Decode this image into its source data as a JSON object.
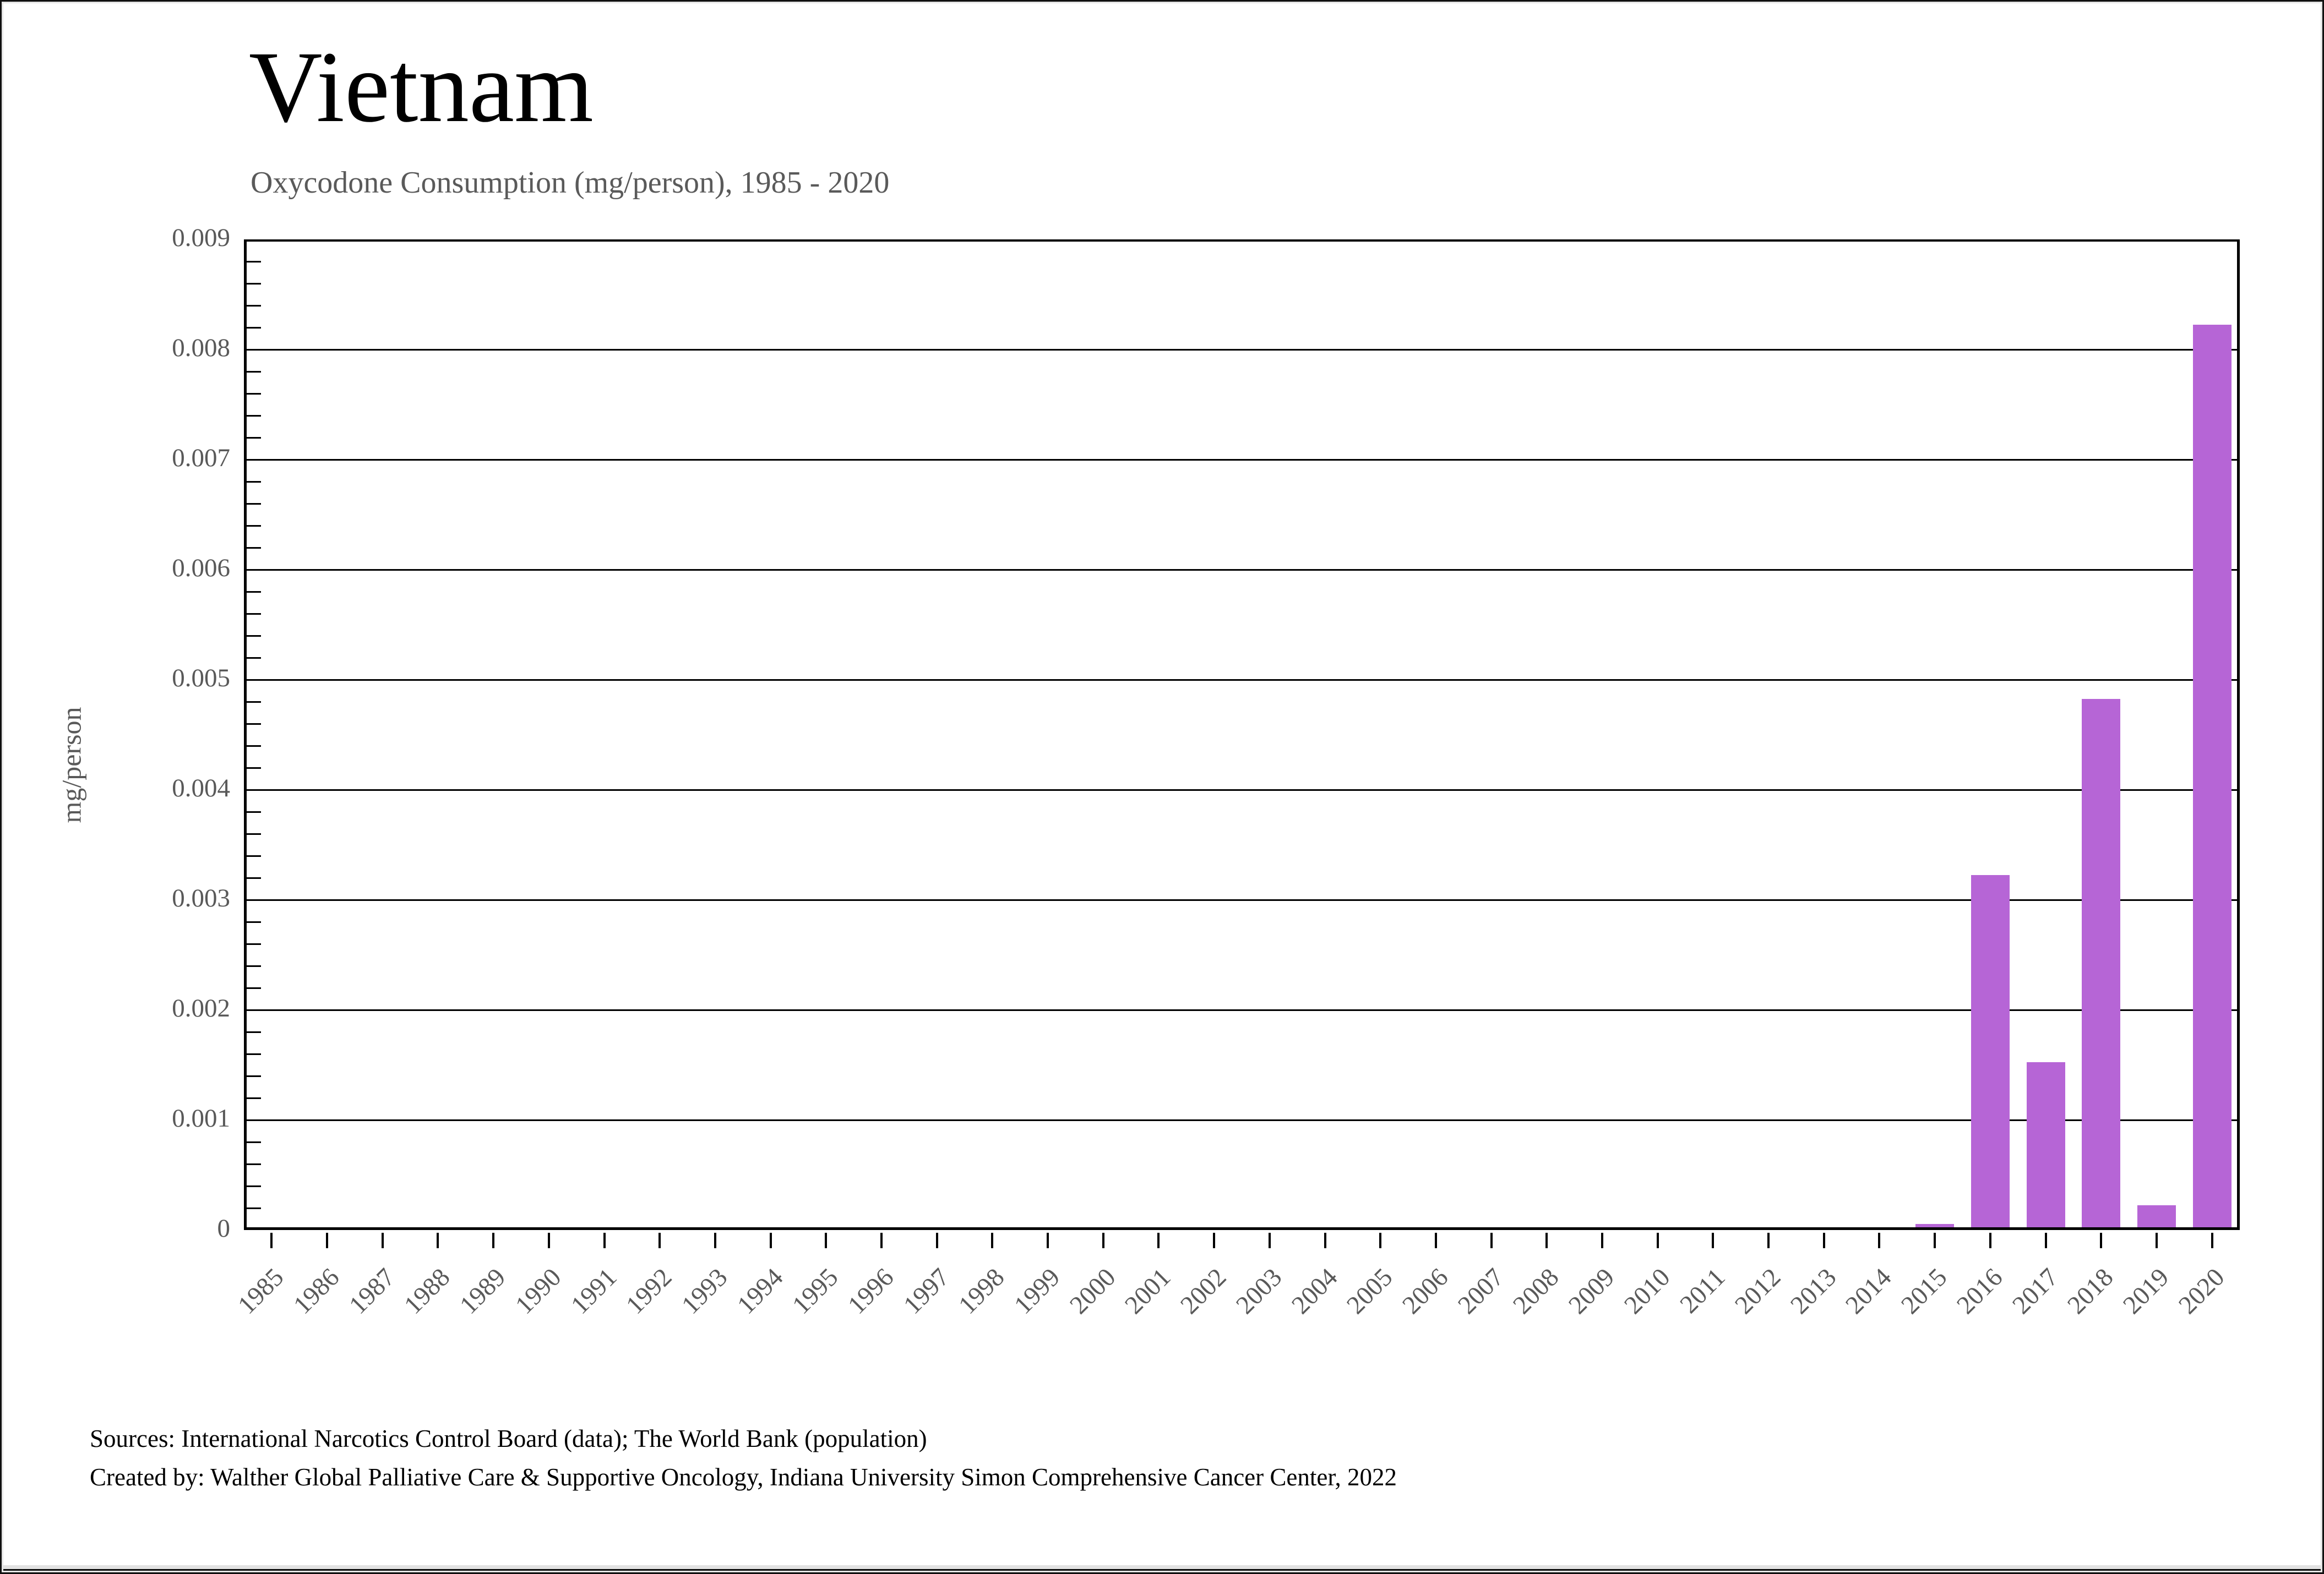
{
  "chart_data": {
    "type": "bar",
    "title": "Vietnam",
    "subtitle": "Oxycodone Consumption (mg/person), 1985 - 2020",
    "ylabel": "mg/person",
    "xlabel": "",
    "ylim": [
      0,
      0.009
    ],
    "ytick_interval": 0.001,
    "ytick_labels": [
      "0",
      "0.001",
      "0.002",
      "0.003",
      "0.004",
      "0.005",
      "0.006",
      "0.007",
      "0.008",
      "0.009"
    ],
    "minor_ticks_per_major": 5,
    "grid": "horizontal-major-on",
    "legend_position": "none",
    "bar_color": "#b665d6",
    "axis_color": "#000000",
    "tick_label_color": "#595959",
    "categories": [
      "1985",
      "1986",
      "1987",
      "1988",
      "1989",
      "1990",
      "1991",
      "1992",
      "1993",
      "1994",
      "1995",
      "1996",
      "1997",
      "1998",
      "1999",
      "2000",
      "2001",
      "2002",
      "2003",
      "2004",
      "2005",
      "2006",
      "2007",
      "2008",
      "2009",
      "2010",
      "2011",
      "2012",
      "2013",
      "2014",
      "2015",
      "2016",
      "2017",
      "2018",
      "2019",
      "2020"
    ],
    "values": [
      0,
      0,
      0,
      0,
      0,
      0,
      0,
      0,
      0,
      0,
      0,
      0,
      0,
      0,
      0,
      0,
      0,
      0,
      0,
      0,
      0,
      0,
      0,
      0,
      0,
      0,
      0,
      0,
      0,
      0,
      3e-05,
      0.0032,
      0.0015,
      0.0048,
      0.0002,
      0.0082
    ]
  },
  "footer": {
    "sources_line1": "Sources: International Narcotics Control Board (data); The World Bank (population)",
    "sources_line2": "Created by: Walther Global Palliative Care & Supportive Oncology, Indiana University Simon Comprehensive Cancer Center, 2022"
  }
}
